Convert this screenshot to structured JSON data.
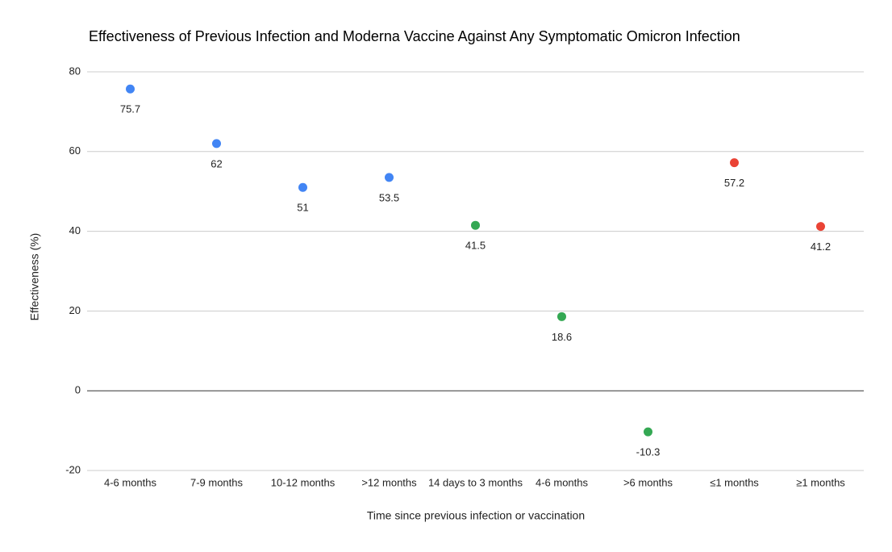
{
  "chart_data": {
    "type": "dot",
    "title": "Effectiveness of Previous Infection and Moderna Vaccine Against Any Symptomatic Omicron Infection",
    "x_label": "Time since previous infection or vaccination",
    "y_label": "Effectiveness (%)",
    "categories": [
      "4-6 months",
      "7-9 months",
      "10-12 months",
      ">12 months",
      "14 days to 3 months",
      "4-6 months",
      ">6 months",
      "≤1 months",
      "≥1 months"
    ],
    "values": [
      75.7,
      62,
      51,
      53.5,
      41.5,
      18.6,
      -10.3,
      57.2,
      41.2
    ],
    "colors": [
      "#4285f4",
      "#4285f4",
      "#4285f4",
      "#4285f4",
      "#34a853",
      "#34a853",
      "#34a853",
      "#ea4335",
      "#ea4335"
    ],
    "ylim": [
      -20,
      80
    ],
    "yticks": [
      -20,
      0,
      20,
      40,
      60,
      80
    ],
    "grid": true
  }
}
